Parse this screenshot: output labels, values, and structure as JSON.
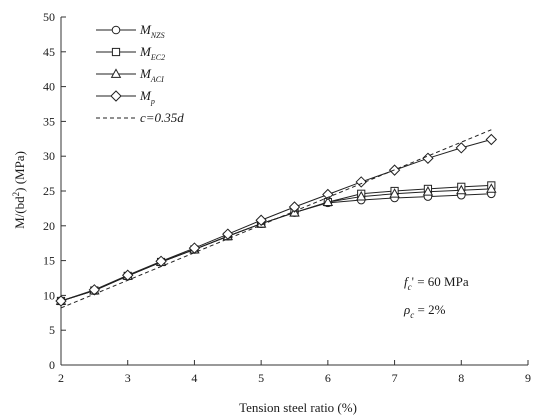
{
  "chart_data": {
    "type": "line",
    "xlabel": "Tension steel ratio (%)",
    "ylabel": "M/(bd²) (MPa)",
    "xlim": [
      2,
      9
    ],
    "ylim": [
      0,
      50
    ],
    "x_ticks": [
      "2",
      "3",
      "4",
      "5",
      "6",
      "7",
      "8",
      "9"
    ],
    "y_ticks": [
      "0",
      "5",
      "10",
      "15",
      "20",
      "25",
      "30",
      "35",
      "40",
      "45",
      "50"
    ],
    "grid": false,
    "legend_position": "top-left",
    "series": [
      {
        "name": "M_NZS",
        "marker": "circle",
        "line_style": "solid",
        "x": [
          2,
          2.5,
          3,
          3.5,
          4,
          4.5,
          5,
          5.5,
          6,
          6.5,
          7,
          7.5,
          8,
          8.45
        ],
        "y": [
          9.2,
          10.7,
          12.8,
          14.8,
          16.6,
          18.5,
          20.3,
          21.9,
          23.3,
          23.7,
          24.0,
          24.2,
          24.4,
          24.6
        ]
      },
      {
        "name": "M_EC2",
        "marker": "square",
        "line_style": "solid",
        "x": [
          2,
          2.5,
          3,
          3.5,
          4,
          4.5,
          5,
          5.5,
          6,
          6.5,
          7,
          7.5,
          8,
          8.45
        ],
        "y": [
          9.2,
          10.7,
          12.8,
          14.8,
          16.6,
          18.5,
          20.3,
          21.9,
          23.4,
          24.6,
          25.0,
          25.3,
          25.6,
          25.8
        ]
      },
      {
        "name": "M_ACI",
        "marker": "triangle",
        "line_style": "solid",
        "x": [
          2,
          2.5,
          3,
          3.5,
          4,
          4.5,
          5,
          5.5,
          6,
          6.5,
          7,
          7.5,
          8,
          8.45
        ],
        "y": [
          9.2,
          10.7,
          12.8,
          14.8,
          16.6,
          18.5,
          20.3,
          21.9,
          23.4,
          24.2,
          24.6,
          24.9,
          25.1,
          25.3
        ]
      },
      {
        "name": "M_p",
        "marker": "diamond",
        "line_style": "solid",
        "x": [
          2,
          2.5,
          3,
          3.5,
          4,
          4.5,
          5,
          5.5,
          6,
          6.5,
          7,
          7.5,
          8,
          8.45
        ],
        "y": [
          9.2,
          10.8,
          12.9,
          14.9,
          16.8,
          18.8,
          20.8,
          22.7,
          24.5,
          26.3,
          28.0,
          29.7,
          31.2,
          32.4
        ]
      },
      {
        "name": "c=0.35d",
        "marker": "none",
        "line_style": "dashed",
        "x": [
          2,
          8.45
        ],
        "y": [
          8.2,
          33.8
        ]
      }
    ],
    "legend_entries": [
      {
        "main": "M",
        "sub": "NZS",
        "marker": "circle",
        "dashed": false
      },
      {
        "main": "M",
        "sub": "EC2",
        "marker": "square",
        "dashed": false
      },
      {
        "main": "M",
        "sub": "ACI",
        "marker": "triangle",
        "dashed": false
      },
      {
        "main": "M",
        "sub": "p",
        "marker": "diamond",
        "dashed": false
      },
      {
        "main": "c=0.35d",
        "sub": "",
        "marker": "none",
        "dashed": true
      }
    ],
    "annotations": {
      "fc_main": "f",
      "fc_sub": "c",
      "fc_rest": "' = 60 MPa",
      "rho_main": "ρ",
      "rho_sub": "c",
      "rho_rest": " = 2%"
    }
  },
  "colors": {
    "line": "#222222",
    "marker_fill": "#ffffff",
    "axis": "#333333"
  }
}
